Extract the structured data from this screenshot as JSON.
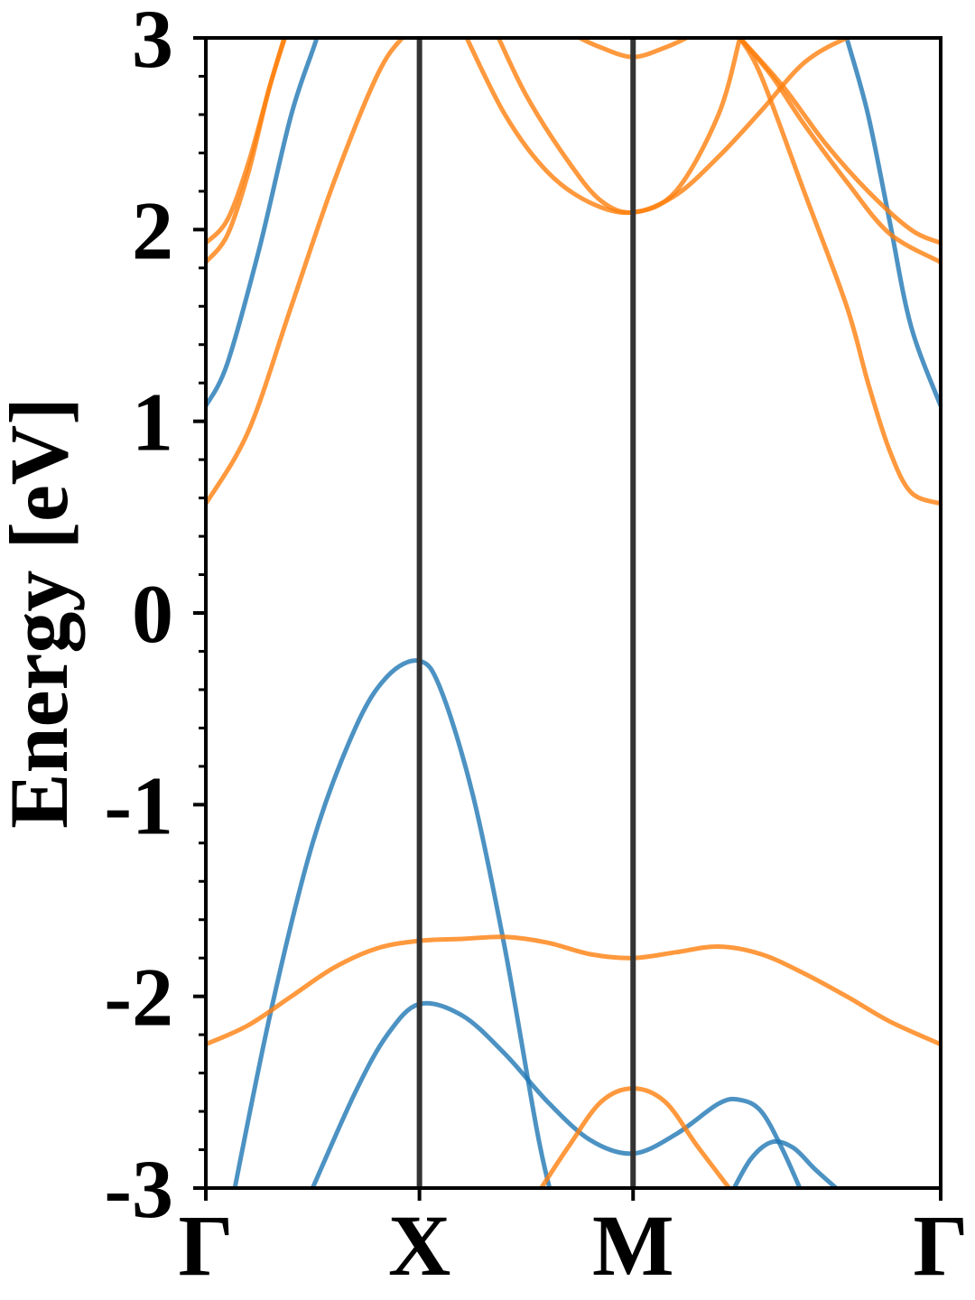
{
  "chart_data": {
    "type": "line",
    "title": "",
    "xlabel": "",
    "ylabel": "Energy [eV]",
    "ylim": [
      -3,
      3
    ],
    "xlim": [
      0,
      3.44
    ],
    "yticks": [
      -3,
      -2,
      -1,
      0,
      1,
      2,
      3
    ],
    "ytick_labels": [
      "-3",
      "-2",
      "-1",
      "0",
      "1",
      "2",
      "3"
    ],
    "kpoints": [
      {
        "label": "Γ",
        "x": 0
      },
      {
        "label": "X",
        "x": 1.0
      },
      {
        "label": "M",
        "x": 2.0
      },
      {
        "label": "Γ",
        "x": 3.44
      }
    ],
    "grid": false,
    "legend": "none",
    "colors": {
      "spin_up": "#1f77b4",
      "spin_down": "#ff7f0e",
      "kpath_line": "#333333"
    },
    "series": [
      {
        "group": "spin_up",
        "x": [
          0,
          0.1,
          0.25,
          0.4,
          0.52,
          0.6
        ],
        "y": [
          1.08,
          1.3,
          1.9,
          2.6,
          3.0,
          3.3
        ]
      },
      {
        "group": "spin_up",
        "x": [
          0.1,
          0.3,
          0.5,
          0.7,
          0.85,
          1.0,
          1.1,
          1.25,
          1.4,
          1.55,
          1.62
        ],
        "y": [
          -3.2,
          -2.1,
          -1.2,
          -0.6,
          -0.33,
          -0.25,
          -0.4,
          -0.95,
          -1.75,
          -2.7,
          -3.05
        ]
      },
      {
        "group": "spin_up",
        "x": [
          0.5,
          0.7,
          0.85,
          1.0,
          1.2,
          1.4,
          1.6,
          1.8,
          2.0,
          2.2,
          2.4,
          2.5,
          2.6,
          2.7,
          2.8
        ],
        "y": [
          -3.0,
          -2.5,
          -2.2,
          -2.04,
          -2.1,
          -2.3,
          -2.55,
          -2.75,
          -2.82,
          -2.72,
          -2.56,
          -2.54,
          -2.6,
          -2.8,
          -3.05
        ]
      },
      {
        "group": "spin_up",
        "x": [
          2.45,
          2.55,
          2.65,
          2.75,
          2.85,
          2.95,
          3.05
        ],
        "y": [
          -3.05,
          -2.85,
          -2.76,
          -2.79,
          -2.9,
          -3.0,
          -3.1
        ]
      },
      {
        "group": "spin_up",
        "x": [
          2.95,
          3.0,
          3.1,
          3.2,
          3.3,
          3.44
        ],
        "y": [
          3.2,
          3.0,
          2.6,
          2.05,
          1.5,
          1.08
        ]
      },
      {
        "group": "spin_down",
        "x": [
          0,
          0.2,
          0.4,
          0.6,
          0.8,
          0.92,
          1.0
        ],
        "y": [
          0.57,
          0.95,
          1.6,
          2.25,
          2.8,
          3.0,
          3.05
        ]
      },
      {
        "group": "spin_down",
        "x": [
          0,
          0.1,
          0.2,
          0.3,
          0.4
        ],
        "y": [
          1.83,
          1.97,
          2.3,
          2.75,
          3.1
        ]
      },
      {
        "group": "spin_down",
        "x": [
          0,
          0.1,
          0.2,
          0.3,
          0.38
        ],
        "y": [
          1.93,
          2.05,
          2.35,
          2.75,
          3.05
        ]
      },
      {
        "group": "spin_down",
        "x": [
          1.2,
          1.4,
          1.6,
          1.8,
          2.0,
          2.2,
          2.4,
          2.5
        ],
        "y": [
          3.05,
          2.6,
          2.3,
          2.14,
          2.09,
          2.2,
          2.6,
          3.0
        ]
      },
      {
        "group": "spin_down",
        "x": [
          1.35,
          1.5,
          1.7,
          1.85,
          2.0,
          2.2,
          2.4,
          2.6,
          2.8,
          3.0,
          3.15
        ],
        "y": [
          3.05,
          2.7,
          2.35,
          2.15,
          2.09,
          2.18,
          2.38,
          2.62,
          2.87,
          3.0,
          3.05
        ]
      },
      {
        "group": "spin_down",
        "x": [
          1.75,
          1.85,
          2.0,
          2.15,
          2.25
        ],
        "y": [
          3.0,
          2.95,
          2.9,
          2.95,
          3.0
        ]
      },
      {
        "group": "spin_down",
        "x": [
          2.5,
          2.7,
          2.9,
          3.1,
          3.3,
          3.44
        ],
        "y": [
          3.0,
          2.75,
          2.45,
          2.2,
          2.0,
          1.93
        ]
      },
      {
        "group": "spin_down",
        "x": [
          2.5,
          2.65,
          2.8,
          3.0,
          3.2,
          3.44
        ],
        "y": [
          3.0,
          2.8,
          2.55,
          2.25,
          1.98,
          1.83
        ]
      },
      {
        "group": "spin_down",
        "x": [
          2.5,
          2.6,
          2.8,
          3.0,
          3.1,
          3.2,
          3.3,
          3.44
        ],
        "y": [
          3.0,
          2.8,
          2.2,
          1.6,
          1.2,
          0.85,
          0.63,
          0.57
        ]
      },
      {
        "group": "spin_down",
        "x": [
          0,
          0.2,
          0.4,
          0.6,
          0.8,
          1.0,
          1.2,
          1.4,
          1.6,
          1.8,
          2.0,
          2.2,
          2.4,
          2.6,
          2.8,
          3.0,
          3.2,
          3.44
        ],
        "y": [
          -2.25,
          -2.15,
          -2.0,
          -1.85,
          -1.75,
          -1.71,
          -1.7,
          -1.69,
          -1.72,
          -1.78,
          -1.8,
          -1.77,
          -1.74,
          -1.78,
          -1.88,
          -2.0,
          -2.13,
          -2.25
        ]
      },
      {
        "group": "spin_down",
        "x": [
          1.57,
          1.7,
          1.85,
          2.0,
          2.15,
          2.3,
          2.45
        ],
        "y": [
          -3.0,
          -2.78,
          -2.55,
          -2.48,
          -2.55,
          -2.78,
          -3.0
        ]
      }
    ]
  }
}
